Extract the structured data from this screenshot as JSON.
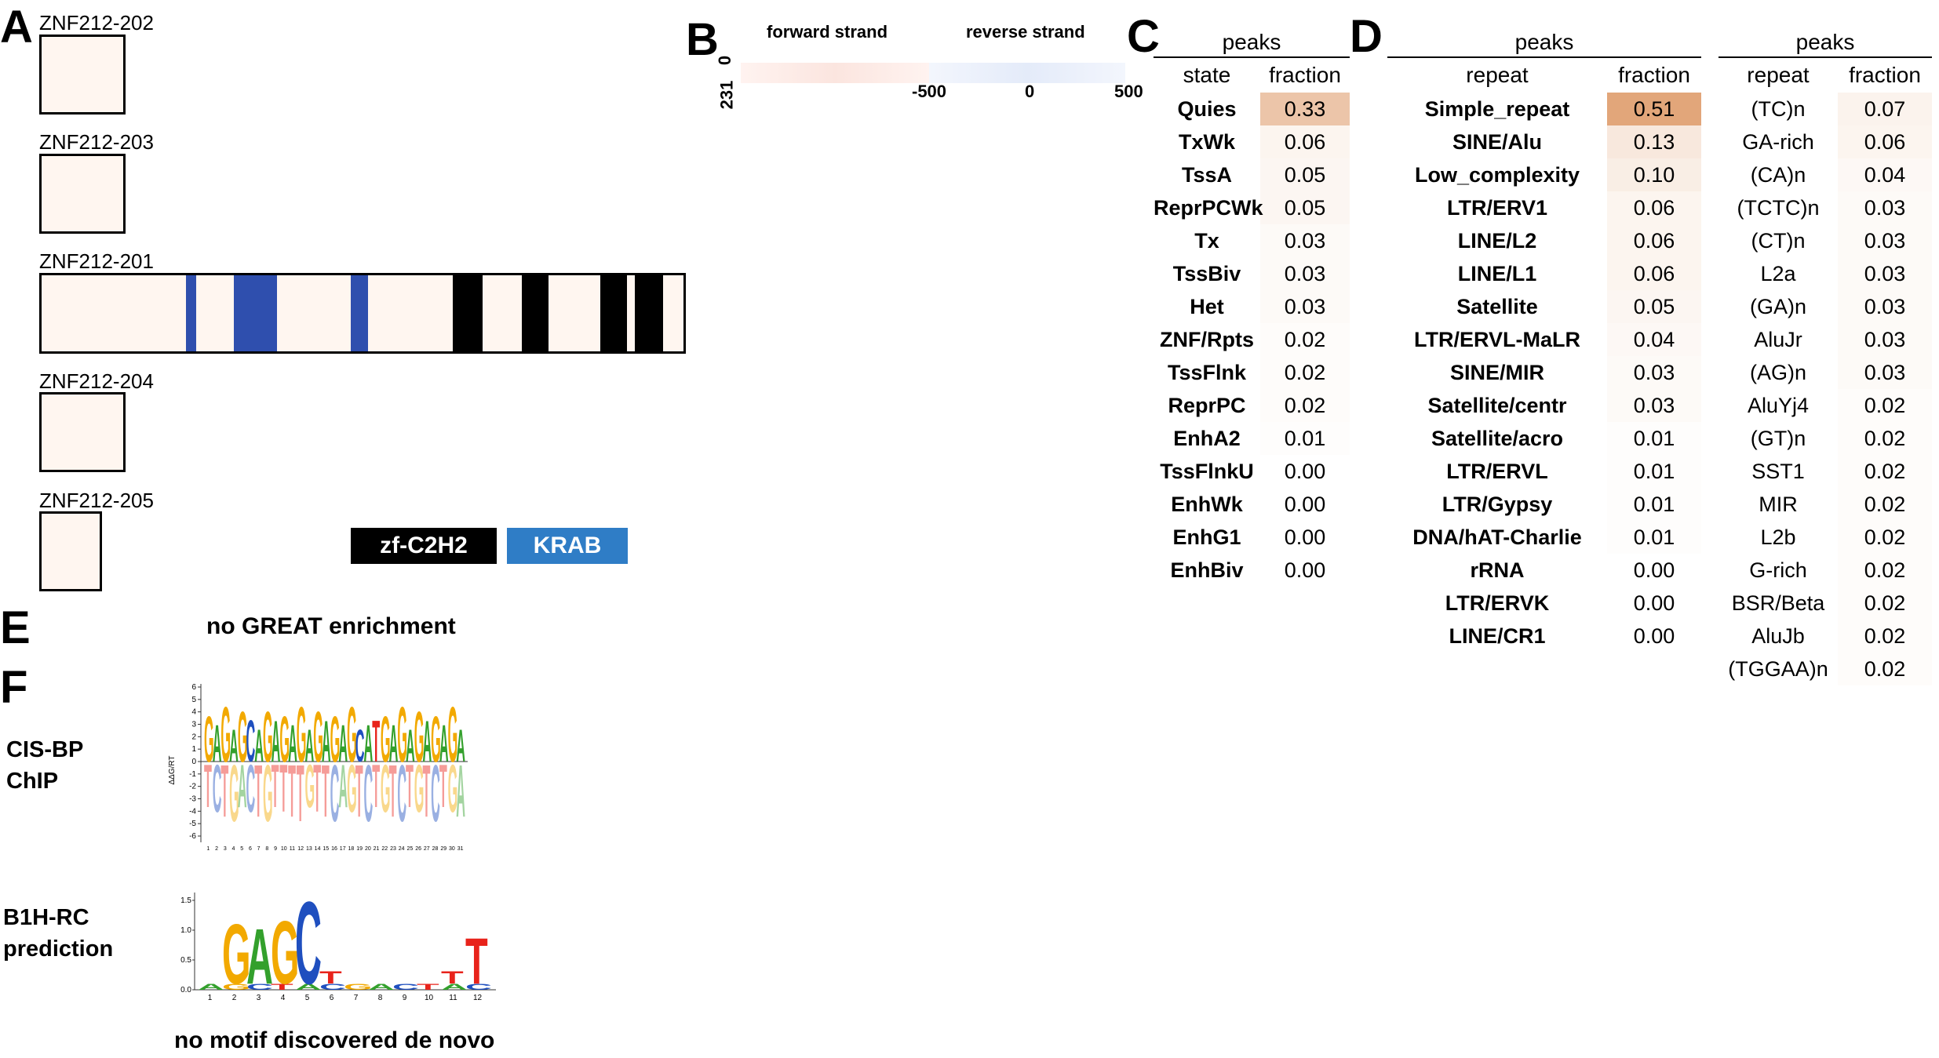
{
  "panelA": {
    "letter": "A",
    "isoforms": [
      {
        "name": "ZNF212-202"
      },
      {
        "name": "ZNF212-203"
      },
      {
        "name": "ZNF212-201"
      },
      {
        "name": "ZNF212-204"
      },
      {
        "name": "ZNF212-205"
      }
    ],
    "legend": {
      "zf": "zf-C2H2",
      "krab": "KRAB"
    },
    "colors": {
      "zf": "#000000",
      "krab": "#2f4fae",
      "legend_krab": "#2f7dc6",
      "background": "#fff6f0"
    }
  },
  "panelB": {
    "letter": "B",
    "forward_label": "forward strand",
    "reverse_label": "reverse strand",
    "y_top": "0",
    "y_bottom": "231",
    "ticks": [
      "-500",
      "0",
      "500"
    ]
  },
  "panelC": {
    "letter": "C",
    "group_header": "peaks",
    "col_state": "state",
    "col_fraction": "fraction",
    "rows": [
      {
        "label": "Quies",
        "value": "0.33",
        "shade": 0.33
      },
      {
        "label": "TxWk",
        "value": "0.06",
        "shade": 0.06
      },
      {
        "label": "TssA",
        "value": "0.05",
        "shade": 0.05
      },
      {
        "label": "ReprPCWk",
        "value": "0.05",
        "shade": 0.05
      },
      {
        "label": "Tx",
        "value": "0.03",
        "shade": 0.03
      },
      {
        "label": "TssBiv",
        "value": "0.03",
        "shade": 0.03
      },
      {
        "label": "Het",
        "value": "0.03",
        "shade": 0.03
      },
      {
        "label": "ZNF/Rpts",
        "value": "0.02",
        "shade": 0.02
      },
      {
        "label": "TssFlnk",
        "value": "0.02",
        "shade": 0.02
      },
      {
        "label": "ReprPC",
        "value": "0.02",
        "shade": 0.02
      },
      {
        "label": "EnhA2",
        "value": "0.01",
        "shade": 0.01
      },
      {
        "label": "TssFlnkU",
        "value": "0.00",
        "shade": 0.0
      },
      {
        "label": "EnhWk",
        "value": "0.00",
        "shade": 0.0
      },
      {
        "label": "EnhG1",
        "value": "0.00",
        "shade": 0.0
      },
      {
        "label": "EnhBiv",
        "value": "0.00",
        "shade": 0.0
      }
    ]
  },
  "panelD": {
    "letter": "D",
    "group_header": "peaks",
    "col_repeat": "repeat",
    "col_fraction": "fraction",
    "families": [
      {
        "label": "Simple_repeat",
        "value": "0.51",
        "shade": 0.51
      },
      {
        "label": "SINE/Alu",
        "value": "0.13",
        "shade": 0.13
      },
      {
        "label": "Low_complexity",
        "value": "0.10",
        "shade": 0.1
      },
      {
        "label": "LTR/ERV1",
        "value": "0.06",
        "shade": 0.06
      },
      {
        "label": "LINE/L2",
        "value": "0.06",
        "shade": 0.06
      },
      {
        "label": "LINE/L1",
        "value": "0.06",
        "shade": 0.06
      },
      {
        "label": "Satellite",
        "value": "0.05",
        "shade": 0.05
      },
      {
        "label": "LTR/ERVL-MaLR",
        "value": "0.04",
        "shade": 0.04
      },
      {
        "label": "SINE/MIR",
        "value": "0.03",
        "shade": 0.03
      },
      {
        "label": "Satellite/centr",
        "value": "0.03",
        "shade": 0.03
      },
      {
        "label": "Satellite/acro",
        "value": "0.01",
        "shade": 0.01
      },
      {
        "label": "LTR/ERVL",
        "value": "0.01",
        "shade": 0.01
      },
      {
        "label": "LTR/Gypsy",
        "value": "0.01",
        "shade": 0.01
      },
      {
        "label": "DNA/hAT-Charlie",
        "value": "0.01",
        "shade": 0.01
      },
      {
        "label": "rRNA",
        "value": "0.00",
        "shade": 0.0
      },
      {
        "label": "LTR/ERVK",
        "value": "0.00",
        "shade": 0.0
      },
      {
        "label": "LINE/CR1",
        "value": "0.00",
        "shade": 0.0
      }
    ],
    "repeats": [
      {
        "label": "(TC)n",
        "value": "0.07",
        "shade": 0.07
      },
      {
        "label": "GA-rich",
        "value": "0.06",
        "shade": 0.06
      },
      {
        "label": "(CA)n",
        "value": "0.04",
        "shade": 0.04
      },
      {
        "label": "(TCTC)n",
        "value": "0.03",
        "shade": 0.03
      },
      {
        "label": "(CT)n",
        "value": "0.03",
        "shade": 0.03
      },
      {
        "label": "L2a",
        "value": "0.03",
        "shade": 0.03
      },
      {
        "label": "(GA)n",
        "value": "0.03",
        "shade": 0.03
      },
      {
        "label": "AluJr",
        "value": "0.03",
        "shade": 0.03
      },
      {
        "label": "(AG)n",
        "value": "0.03",
        "shade": 0.03
      },
      {
        "label": "AluYj4",
        "value": "0.02",
        "shade": 0.02
      },
      {
        "label": "(GT)n",
        "value": "0.02",
        "shade": 0.02
      },
      {
        "label": "SST1",
        "value": "0.02",
        "shade": 0.02
      },
      {
        "label": "MIR",
        "value": "0.02",
        "shade": 0.02
      },
      {
        "label": "L2b",
        "value": "0.02",
        "shade": 0.02
      },
      {
        "label": "G-rich",
        "value": "0.02",
        "shade": 0.02
      },
      {
        "label": "BSR/Beta",
        "value": "0.02",
        "shade": 0.02
      },
      {
        "label": "AluJb",
        "value": "0.02",
        "shade": 0.02
      },
      {
        "label": "(TGGAA)n",
        "value": "0.02",
        "shade": 0.02
      }
    ]
  },
  "panelE": {
    "letter": "E",
    "text": "no GREAT enrichment"
  },
  "panelF": {
    "letter": "F",
    "cisbp_label_1": "CIS-BP",
    "cisbp_label_2": "ChIP",
    "b1h_label_1": "B1H-RC",
    "b1h_label_2": "prediction",
    "cisbp_ylabel": "ΔΔG/RT",
    "cisbp_yticks": [
      "6",
      "5",
      "4",
      "3",
      "2",
      "1",
      "0",
      "-1",
      "-2",
      "-3",
      "-4",
      "-5",
      "-6"
    ],
    "cisbp_sequence": "GAGAGCAGAGAGAGAGAGCATGAGAGAGAGA",
    "b1h_yticks": [
      "1.5",
      "1.0",
      "0.5",
      "0.0"
    ],
    "b1h_letters": [
      "G",
      "A",
      "G",
      "C",
      "T",
      "T"
    ],
    "de_novo_text": "no motif discovered de novo"
  }
}
